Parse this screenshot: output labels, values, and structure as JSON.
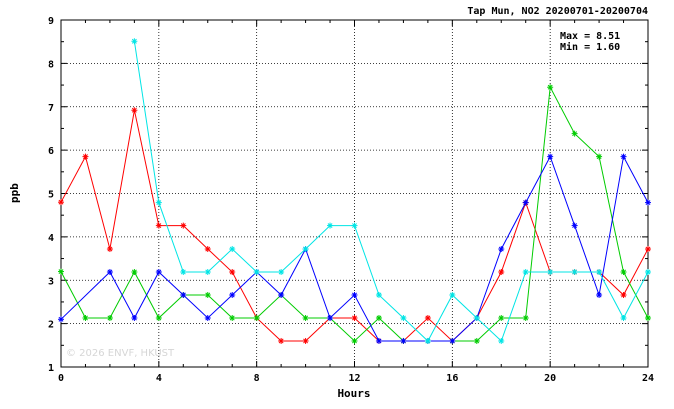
{
  "chart_data": {
    "type": "line",
    "title": "Tap Mun, NO2 20200701-20200704",
    "xlabel": "Hours",
    "ylabel": "ppb",
    "xlim": [
      0,
      24
    ],
    "ylim": [
      1,
      9
    ],
    "xticks": [
      0,
      4,
      8,
      12,
      16,
      20,
      24
    ],
    "yticks": [
      1,
      2,
      3,
      4,
      5,
      6,
      7,
      8,
      9
    ],
    "grid": true,
    "annotations": {
      "max": "Max = 8.51",
      "min": "Min = 1.60"
    },
    "watermark": "© 2026 ENVF, HKUST",
    "series": [
      {
        "color": "#ff0000",
        "x": [
          0,
          1,
          2,
          3,
          4,
          5,
          6,
          7,
          8,
          9,
          10,
          11,
          12,
          13,
          14,
          15,
          16,
          17,
          18,
          19,
          20,
          21,
          22,
          23,
          24
        ],
        "values": [
          4.8,
          5.85,
          3.72,
          6.92,
          4.26,
          4.26,
          3.72,
          3.19,
          2.13,
          1.6,
          1.6,
          2.13,
          2.13,
          1.6,
          1.6,
          2.13,
          1.6,
          2.13,
          3.19,
          4.79,
          3.19,
          3.19,
          3.19,
          2.66,
          3.72
        ]
      },
      {
        "color": "#00cc00",
        "x": [
          0,
          1,
          2,
          3,
          4,
          5,
          6,
          7,
          8,
          9,
          10,
          11,
          12,
          13,
          14,
          15,
          16,
          17,
          18,
          19,
          20,
          21,
          22,
          23,
          24
        ],
        "values": [
          3.2,
          2.13,
          2.13,
          3.19,
          2.13,
          2.66,
          2.66,
          2.13,
          2.13,
          2.66,
          2.13,
          2.13,
          1.6,
          2.13,
          1.6,
          1.6,
          1.6,
          1.6,
          2.13,
          2.13,
          7.45,
          6.38,
          5.85,
          3.19,
          2.13
        ]
      },
      {
        "color": "#0000ff",
        "x": [
          0,
          2,
          3,
          4,
          5,
          6,
          7,
          8,
          9,
          10,
          11,
          12,
          13,
          14,
          15,
          16,
          17,
          18,
          19,
          20,
          21,
          22,
          23,
          24
        ],
        "values": [
          2.1,
          3.19,
          2.13,
          3.19,
          2.66,
          2.13,
          2.66,
          3.19,
          2.66,
          3.72,
          2.13,
          2.66,
          1.6,
          1.6,
          1.6,
          1.6,
          2.13,
          3.72,
          4.79,
          5.85,
          4.26,
          2.66,
          5.85,
          4.79
        ]
      },
      {
        "color": "#00e5e5",
        "x": [
          3,
          4,
          5,
          6,
          7,
          8,
          9,
          10,
          11,
          12,
          13,
          14,
          15,
          16,
          17,
          18,
          19,
          20,
          21,
          22,
          23,
          24
        ],
        "values": [
          8.51,
          4.79,
          3.19,
          3.19,
          3.72,
          3.19,
          3.19,
          3.72,
          4.26,
          4.26,
          2.66,
          2.13,
          1.6,
          2.66,
          2.13,
          1.6,
          3.19,
          3.19,
          3.19,
          3.19,
          2.13,
          3.19
        ]
      }
    ]
  }
}
